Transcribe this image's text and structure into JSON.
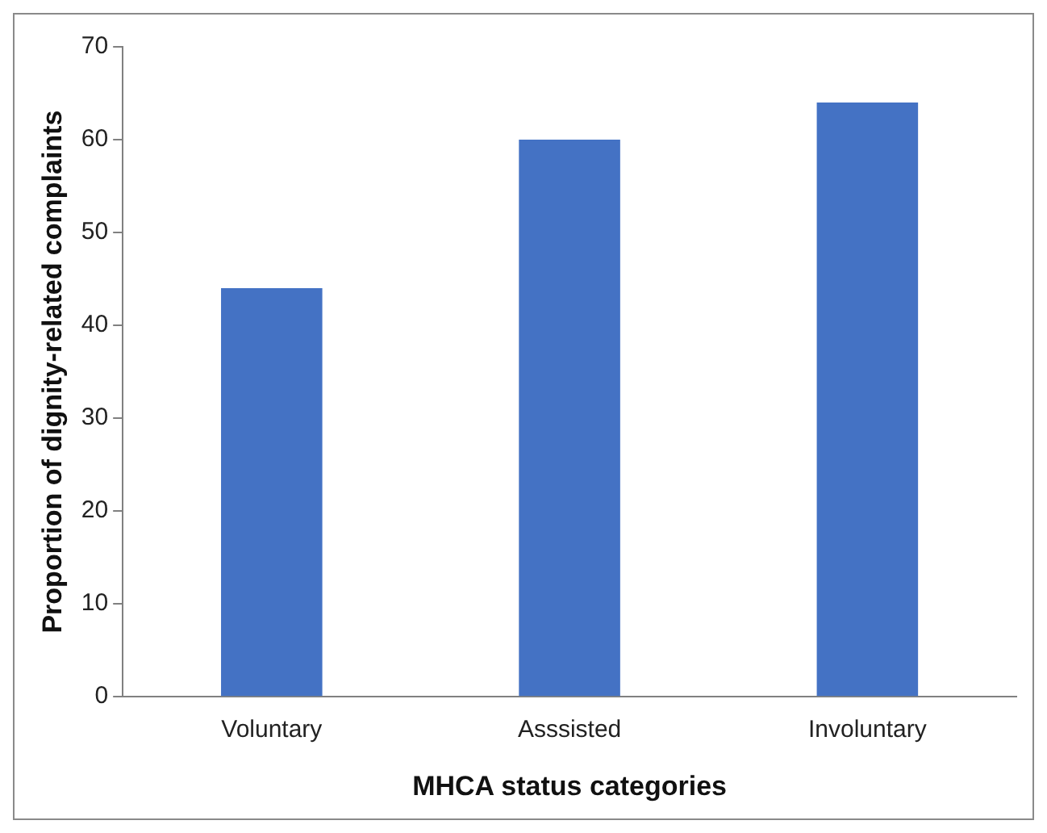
{
  "chart_data": {
    "type": "bar",
    "xlabel": "MHCA status categories",
    "ylabel": "Proportion of dignity-related complaints",
    "categories": [
      "Voluntary",
      "Asssisted",
      "Involuntary"
    ],
    "values": [
      44,
      60,
      64
    ],
    "color": "#4472c4",
    "ylim": [
      0,
      70
    ],
    "yticks": [
      0,
      10,
      20,
      30,
      40,
      50,
      60,
      70
    ],
    "grid": false,
    "legend": false
  }
}
